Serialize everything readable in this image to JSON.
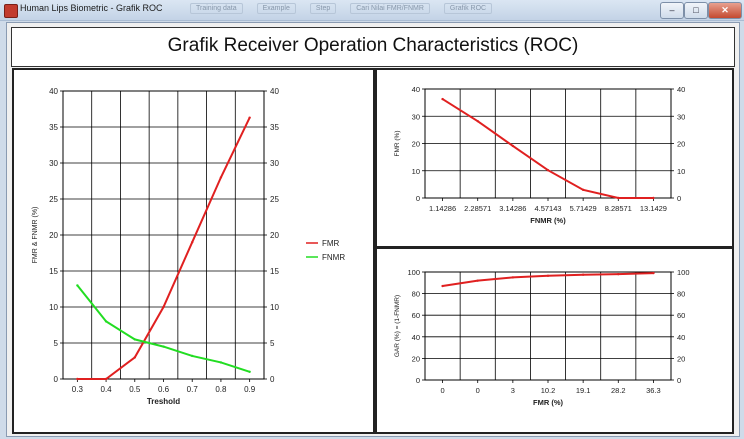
{
  "window": {
    "title": "Human Lips Biometric - Grafik ROC",
    "background_tabs": [
      "Training data",
      "Example",
      "Step",
      "Cari Nilai FMR/FNMR",
      "Grafik ROC"
    ],
    "minimize_glyph": "–",
    "maximize_glyph": "□",
    "close_glyph": "✕"
  },
  "header": {
    "title": "Grafik Receiver Operation Characteristics (ROC)"
  },
  "colors": {
    "fmr": "#e02020",
    "fnmr": "#22dd22",
    "curve": "#e02020"
  },
  "chart_data": [
    {
      "type": "line",
      "xlabel": "Treshold",
      "ylabel": "FMR & FNMR (%)",
      "categories": [
        "0.3",
        "0.4",
        "0.5",
        "0.6",
        "0.7",
        "0.8",
        "0.9"
      ],
      "series": [
        {
          "name": "FMR",
          "values": [
            0,
            0,
            3,
            10,
            19,
            28,
            36.3
          ]
        },
        {
          "name": "FNMR",
          "values": [
            13,
            8,
            5.5,
            4.5,
            3.2,
            2.3,
            1
          ]
        }
      ],
      "ylim": [
        0,
        40
      ],
      "yticks": [
        0,
        5,
        10,
        15,
        20,
        25,
        30,
        35,
        40
      ],
      "grid": true,
      "legend": "right",
      "secondary_axis": "right"
    },
    {
      "type": "line",
      "xlabel": "FNMR (%)",
      "ylabel": "FMR (%)",
      "categories": [
        "1.14286",
        "2.28571",
        "3.14286",
        "4.57143",
        "5.71429",
        "8.28571",
        "13.1429"
      ],
      "values": [
        36.3,
        28.2,
        19.1,
        10.2,
        3,
        0,
        0
      ],
      "ylim": [
        0,
        40
      ],
      "yticks": [
        0,
        10,
        20,
        30,
        40
      ],
      "grid": true,
      "secondary_axis": "right"
    },
    {
      "type": "line",
      "xlabel": "FMR (%)",
      "ylabel": "GAR (%) = (1-FNMR)",
      "categories": [
        "0",
        "0",
        "3",
        "10.2",
        "19.1",
        "28.2",
        "36.3"
      ],
      "values": [
        87,
        92,
        95,
        96.5,
        97.5,
        98,
        99
      ],
      "ylim": [
        0,
        100
      ],
      "yticks": [
        0,
        20,
        40,
        60,
        80,
        100
      ],
      "grid": true,
      "secondary_axis": "right"
    }
  ]
}
